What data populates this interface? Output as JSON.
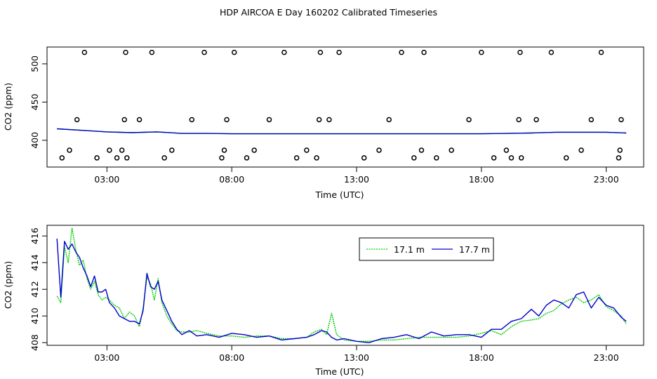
{
  "title": "HDP AIRCOA E  Day 160202  Calibrated Timeseries",
  "colors": {
    "green": "#00cc00",
    "blue": "#0000cc",
    "black": "#000000"
  },
  "chart_data": [
    {
      "type": "line",
      "xlabel": "Time (UTC)",
      "ylabel": "CO2 (ppm)",
      "xlim": [
        0.6,
        24.5
      ],
      "ylim": [
        365,
        522
      ],
      "x_ticks": [
        3,
        8,
        13,
        18,
        23
      ],
      "x_tick_labels": [
        "03:00",
        "08:00",
        "13:00",
        "18:00",
        "23:00"
      ],
      "y_ticks": [
        400,
        450,
        500
      ],
      "y_tick_labels": [
        "400",
        "450",
        "500"
      ],
      "series": [
        {
          "color": "#00cc00",
          "x": [
            1.0,
            2.0,
            3.0,
            4.0,
            5.0,
            6.0,
            7.0,
            8.0,
            9.0,
            10.0,
            11.0,
            12.0,
            13.0,
            14.0,
            15.0,
            16.0,
            17.0,
            18.0,
            19.0,
            20.0,
            21.0,
            22.0,
            23.0,
            23.8
          ],
          "y": [
            415,
            413,
            411,
            410,
            411,
            409,
            409,
            408.5,
            408.5,
            408.5,
            408.5,
            408.5,
            408.5,
            408.5,
            408.5,
            408.5,
            408.5,
            408.5,
            409,
            409.5,
            410.5,
            410.5,
            410.5,
            409.5
          ]
        },
        {
          "color": "#0000cc",
          "x": [
            1.0,
            2.0,
            3.0,
            4.0,
            5.0,
            6.0,
            7.0,
            8.0,
            9.0,
            10.0,
            11.0,
            12.0,
            13.0,
            14.0,
            15.0,
            16.0,
            17.0,
            18.0,
            19.0,
            20.0,
            21.0,
            22.0,
            23.0,
            23.8
          ],
          "y": [
            415,
            413,
            411,
            410,
            411,
            409,
            409,
            408.5,
            408.5,
            408.5,
            408.5,
            408.5,
            408.5,
            408.5,
            408.5,
            408.5,
            408.5,
            408.5,
            409,
            409.5,
            410.5,
            410.5,
            410.5,
            409.5
          ]
        }
      ],
      "flag_points": {
        "x": [
          1.2,
          1.5,
          1.8,
          2.1,
          2.6,
          3.1,
          3.4,
          3.6,
          3.7,
          3.75,
          3.8,
          4.3,
          4.8,
          5.3,
          5.6,
          6.4,
          6.9,
          7.6,
          7.7,
          7.8,
          8.1,
          8.6,
          8.9,
          9.5,
          10.1,
          10.6,
          11.0,
          11.4,
          11.5,
          11.55,
          11.9,
          12.3,
          13.3,
          13.9,
          14.3,
          14.8,
          15.3,
          15.6,
          15.7,
          16.2,
          16.8,
          17.5,
          18.0,
          18.5,
          19.0,
          19.2,
          19.5,
          19.55,
          19.6,
          20.2,
          20.8,
          21.4,
          22.0,
          22.4,
          22.8,
          23.5,
          23.55,
          23.6
        ],
        "y": [
          377,
          387,
          427,
          515,
          377,
          387,
          377,
          387,
          427,
          515,
          377,
          427,
          515,
          377,
          387,
          427,
          515,
          377,
          387,
          427,
          515,
          377,
          387,
          427,
          515,
          377,
          387,
          377,
          427,
          515,
          427,
          515,
          377,
          387,
          427,
          515,
          377,
          387,
          515,
          377,
          387,
          427,
          515,
          377,
          387,
          377,
          427,
          515,
          377,
          427,
          515,
          377,
          387,
          427,
          515,
          377,
          387,
          427
        ]
      }
    },
    {
      "type": "line",
      "xlabel": "Time (UTC)",
      "ylabel": "CO2 (ppm)",
      "xlim": [
        0.6,
        24.5
      ],
      "ylim": [
        407.8,
        416.8
      ],
      "x_ticks": [
        3,
        8,
        13,
        18,
        23
      ],
      "x_tick_labels": [
        "03:00",
        "08:00",
        "13:00",
        "18:00",
        "23:00"
      ],
      "y_ticks": [
        408,
        410,
        412,
        414,
        416
      ],
      "y_tick_labels": [
        "408",
        "410",
        "412",
        "414",
        "416"
      ],
      "legend": {
        "placement": "top-right-inset",
        "entries": [
          {
            "label": "17.1 m",
            "color": "#00cc00"
          },
          {
            "label": "17.7 m",
            "color": "#0000cc"
          }
        ]
      },
      "series": [
        {
          "name": "17.1 m",
          "color": "#00cc00",
          "x": [
            1.0,
            1.15,
            1.3,
            1.45,
            1.6,
            1.75,
            1.9,
            2.05,
            2.2,
            2.35,
            2.5,
            2.65,
            2.8,
            2.95,
            3.1,
            3.3,
            3.5,
            3.7,
            3.9,
            4.1,
            4.3,
            4.45,
            4.6,
            4.75,
            4.9,
            5.05,
            5.2,
            5.4,
            5.6,
            5.8,
            6.0,
            6.3,
            6.6,
            7.0,
            7.5,
            8.0,
            8.5,
            9.0,
            9.5,
            10.0,
            10.5,
            11.0,
            11.3,
            11.6,
            11.8,
            12.0,
            12.2,
            12.5,
            13.0,
            13.5,
            14.0,
            14.5,
            15.0,
            15.5,
            16.0,
            16.5,
            17.0,
            17.5,
            18.0,
            18.4,
            18.8,
            19.2,
            19.6,
            20.0,
            20.3,
            20.6,
            20.9,
            21.2,
            21.5,
            21.8,
            22.1,
            22.4,
            22.7,
            23.0,
            23.3,
            23.6,
            23.8
          ],
          "y": [
            411.5,
            411.0,
            415.2,
            414.0,
            416.6,
            415.0,
            413.8,
            414.2,
            412.8,
            412.0,
            412.6,
            411.6,
            411.2,
            411.4,
            411.2,
            410.8,
            410.6,
            409.8,
            410.3,
            410.0,
            409.2,
            410.6,
            412.9,
            412.4,
            411.2,
            412.8,
            411.0,
            410.0,
            409.4,
            408.9,
            408.8,
            408.8,
            408.9,
            408.7,
            408.5,
            408.5,
            408.4,
            408.5,
            408.5,
            408.3,
            408.3,
            408.4,
            408.8,
            409.0,
            408.6,
            410.2,
            408.6,
            408.2,
            408.1,
            408.1,
            408.2,
            408.2,
            408.3,
            408.4,
            408.4,
            408.4,
            408.4,
            408.5,
            408.7,
            408.9,
            408.6,
            409.2,
            409.6,
            409.7,
            409.8,
            410.2,
            410.4,
            410.9,
            411.2,
            411.4,
            411.0,
            411.2,
            411.6,
            410.7,
            410.4,
            410.0,
            409.4
          ]
        },
        {
          "name": "17.7 m",
          "color": "#0000cc",
          "x": [
            1.0,
            1.15,
            1.3,
            1.45,
            1.6,
            1.75,
            1.9,
            2.05,
            2.2,
            2.35,
            2.5,
            2.65,
            2.8,
            2.95,
            3.1,
            3.3,
            3.5,
            3.7,
            3.9,
            4.1,
            4.3,
            4.45,
            4.6,
            4.75,
            4.9,
            5.05,
            5.2,
            5.4,
            5.6,
            5.8,
            6.0,
            6.3,
            6.6,
            7.0,
            7.5,
            8.0,
            8.5,
            9.0,
            9.5,
            10.0,
            10.5,
            11.0,
            11.3,
            11.6,
            11.8,
            12.0,
            12.2,
            12.5,
            13.0,
            13.5,
            14.0,
            14.5,
            15.0,
            15.5,
            16.0,
            16.5,
            17.0,
            17.5,
            18.0,
            18.4,
            18.8,
            19.2,
            19.6,
            20.0,
            20.3,
            20.6,
            20.9,
            21.2,
            21.5,
            21.8,
            22.1,
            22.4,
            22.7,
            23.0,
            23.3,
            23.6,
            23.8
          ],
          "y": [
            415.8,
            411.4,
            415.6,
            415.0,
            415.4,
            414.8,
            414.4,
            413.6,
            413.0,
            412.2,
            413.0,
            411.8,
            411.8,
            412.0,
            411.0,
            410.6,
            410.0,
            409.8,
            409.6,
            409.6,
            409.4,
            410.4,
            413.2,
            412.2,
            412.0,
            412.6,
            411.2,
            410.4,
            409.6,
            409.0,
            408.6,
            408.9,
            408.5,
            408.6,
            408.4,
            408.7,
            408.6,
            408.4,
            408.5,
            408.2,
            408.3,
            408.4,
            408.6,
            408.9,
            408.8,
            408.4,
            408.2,
            408.3,
            408.1,
            408.0,
            408.3,
            408.4,
            408.6,
            408.3,
            408.8,
            408.5,
            408.6,
            408.6,
            408.4,
            409.0,
            409.0,
            409.6,
            409.8,
            410.5,
            410.0,
            410.8,
            411.2,
            411.0,
            410.6,
            411.6,
            411.8,
            410.6,
            411.4,
            410.8,
            410.6,
            409.9,
            409.6
          ]
        }
      ]
    }
  ]
}
